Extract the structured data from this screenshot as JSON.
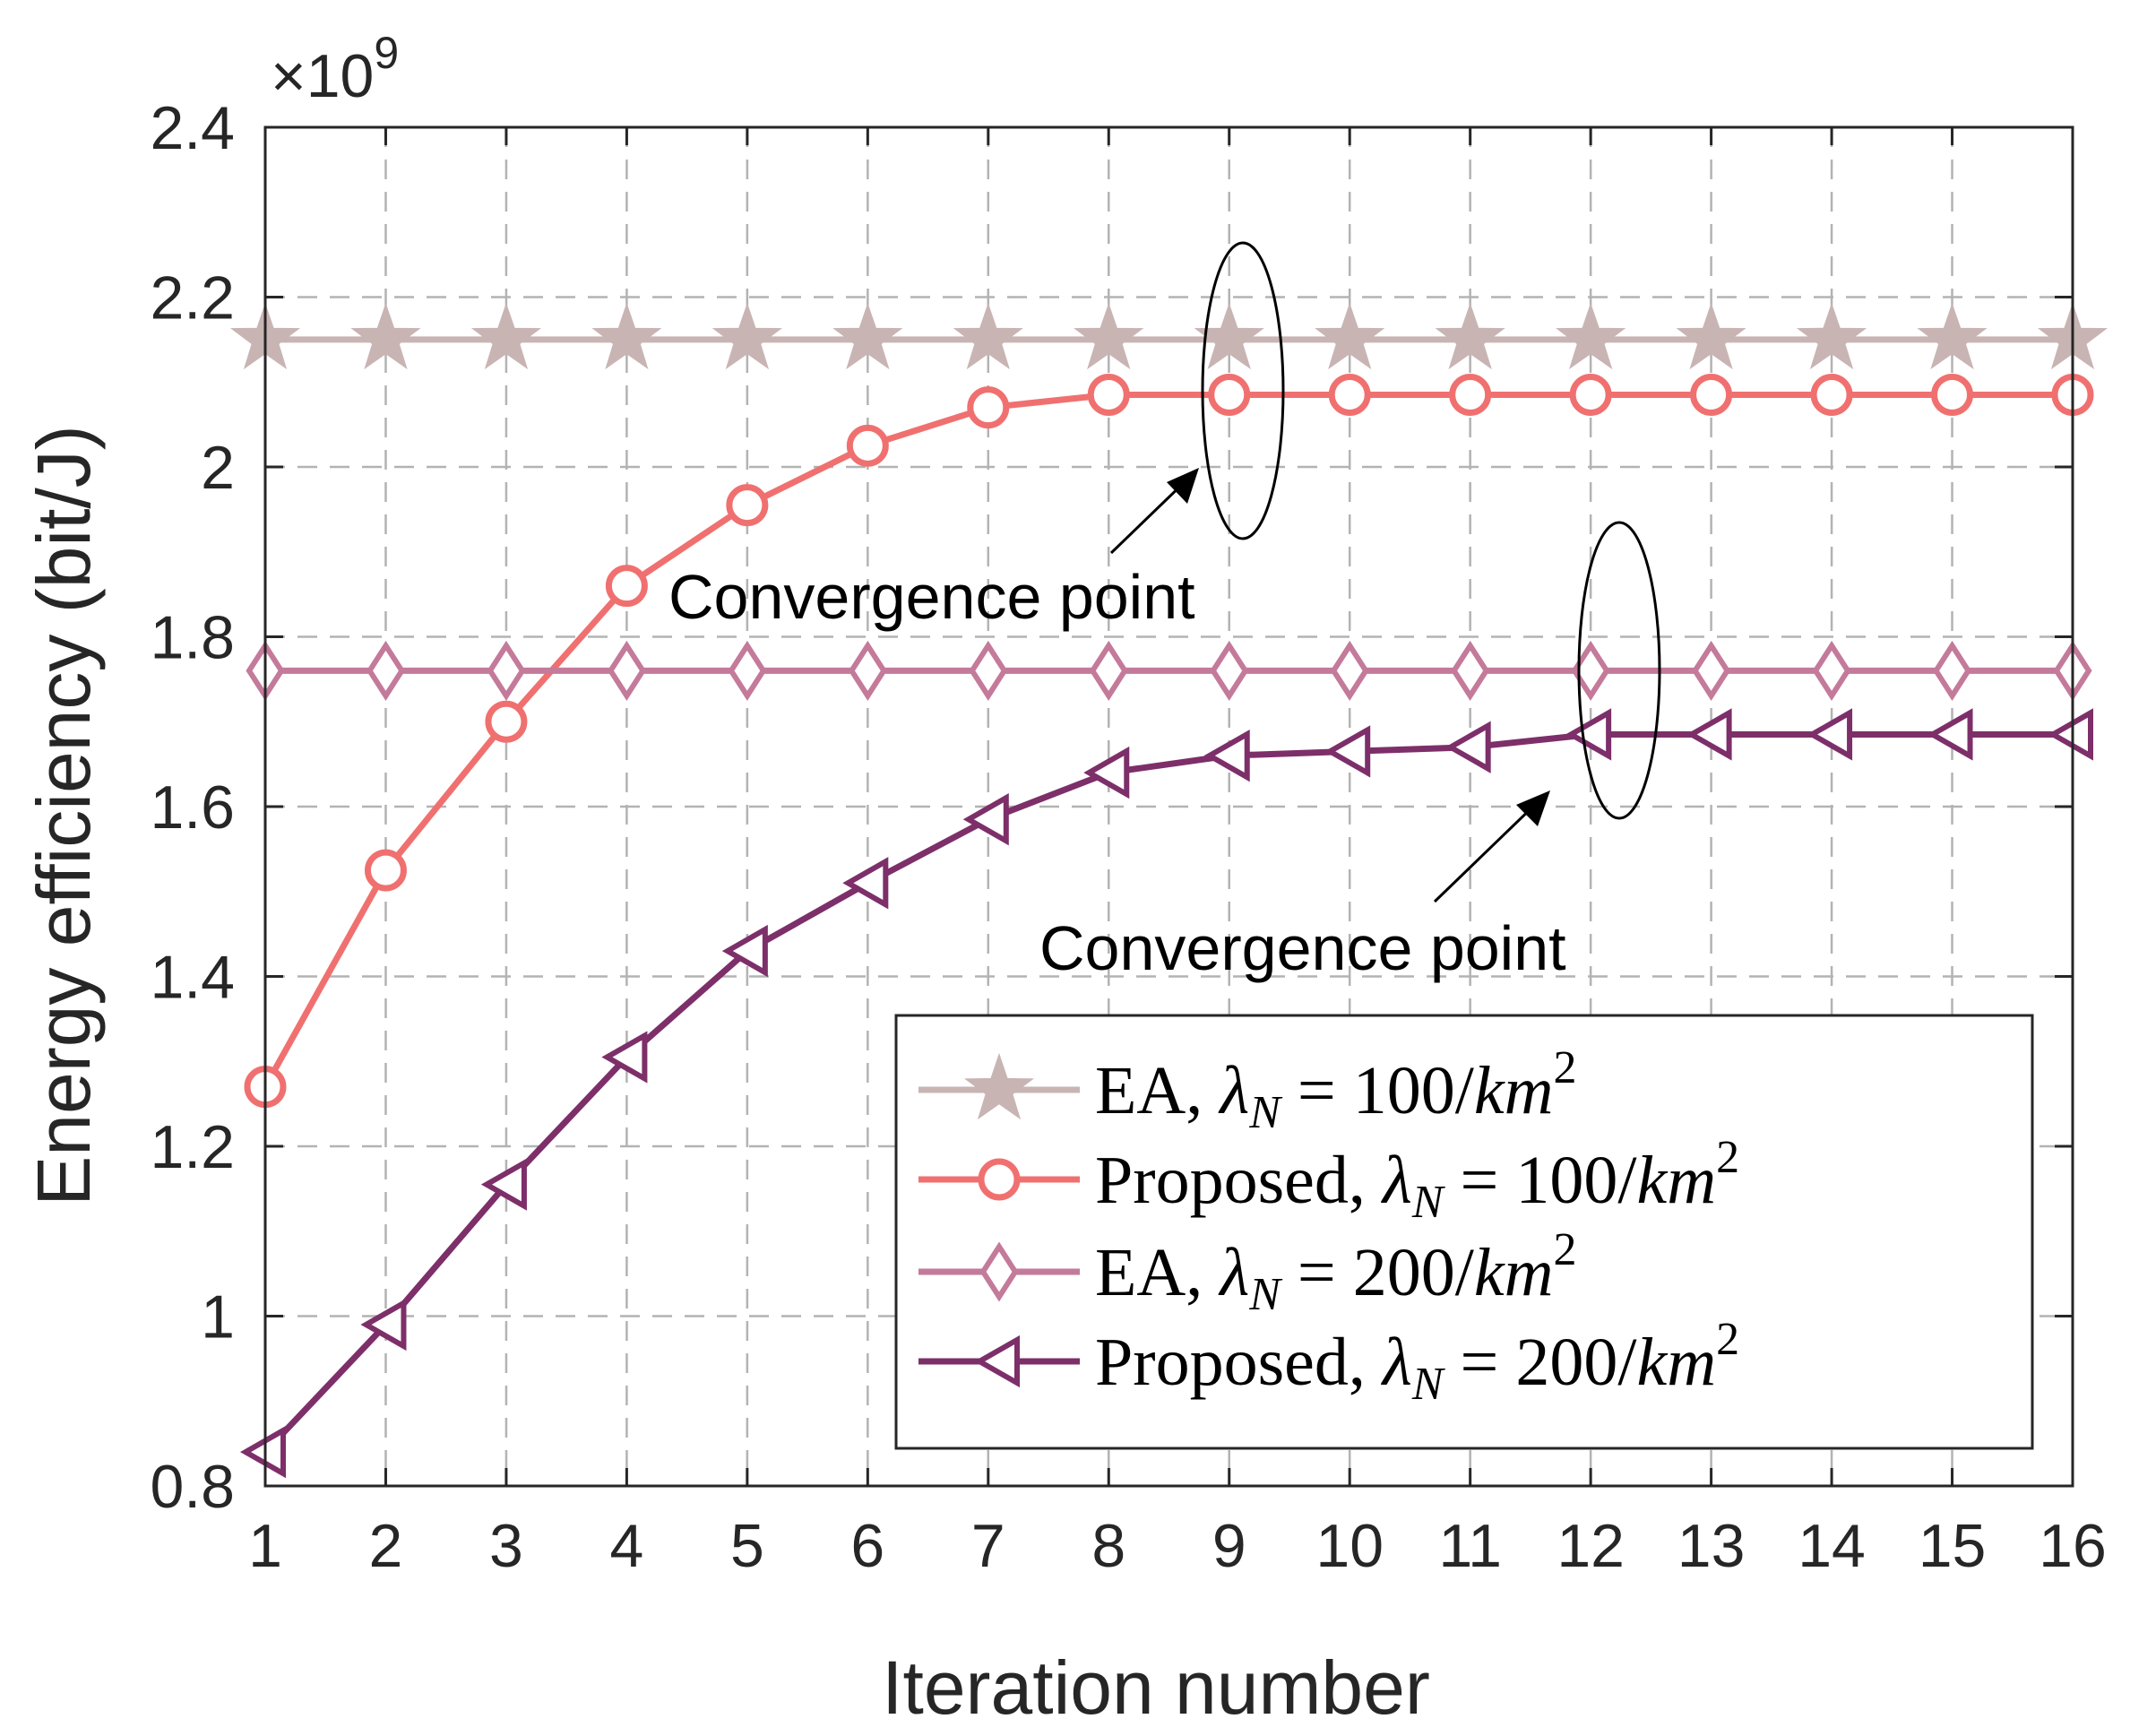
{
  "chart_data": {
    "type": "line",
    "x": [
      1,
      2,
      3,
      4,
      5,
      6,
      7,
      8,
      9,
      10,
      11,
      12,
      13,
      14,
      15,
      16
    ],
    "xlabel": "Iteration number",
    "ylabel": "Energy efficiency (bit/J)",
    "xlim": [
      1,
      16
    ],
    "ylim": [
      0.8,
      2.4
    ],
    "x_ticks": [
      "1",
      "2",
      "3",
      "4",
      "5",
      "6",
      "7",
      "8",
      "9",
      "10",
      "11",
      "12",
      "13",
      "14",
      "15",
      "16"
    ],
    "y_ticks": [
      "0.8",
      "1",
      "1.2",
      "1.4",
      "1.6",
      "1.8",
      "2",
      "2.2",
      "2.4"
    ],
    "y_exponent_base": "×10",
    "y_exponent_power": "9",
    "grid": true,
    "legend_position": "bottom-right",
    "series": [
      {
        "name": "EA, λN = 100/km2",
        "legend_prefix": "EA, ",
        "legend_sub": "N",
        "legend_mid": " = 100/",
        "legend_unit": "km",
        "legend_sup": "2",
        "marker": "star",
        "color": "#c9b4b4",
        "values": [
          2.15,
          2.15,
          2.15,
          2.15,
          2.15,
          2.15,
          2.15,
          2.15,
          2.15,
          2.15,
          2.15,
          2.15,
          2.15,
          2.15,
          2.15,
          2.15
        ]
      },
      {
        "name": "Proposed, λN = 100/km2",
        "legend_prefix": "Proposed, ",
        "legend_sub": "N",
        "legend_mid": " = 100/",
        "legend_unit": "km",
        "legend_sup": "2",
        "marker": "circle",
        "color": "#f07070",
        "values": [
          1.27,
          1.525,
          1.7,
          1.86,
          1.955,
          2.025,
          2.07,
          2.085,
          2.085,
          2.085,
          2.085,
          2.085,
          2.085,
          2.085,
          2.085,
          2.085
        ]
      },
      {
        "name": "EA, λN = 200/km2",
        "legend_prefix": "EA, ",
        "legend_sub": "N",
        "legend_mid": " = 200/",
        "legend_unit": "km",
        "legend_sup": "2",
        "marker": "diamond",
        "color": "#c47a9a",
        "values": [
          1.76,
          1.76,
          1.76,
          1.76,
          1.76,
          1.76,
          1.76,
          1.76,
          1.76,
          1.76,
          1.76,
          1.76,
          1.76,
          1.76,
          1.76,
          1.76
        ]
      },
      {
        "name": "Proposed, λN = 200/km2",
        "legend_prefix": "Proposed, ",
        "legend_sub": "N",
        "legend_mid": " = 200/",
        "legend_unit": "km",
        "legend_sup": "2",
        "marker": "triangle-left",
        "color": "#7d2f69",
        "values": [
          0.84,
          0.99,
          1.155,
          1.305,
          1.43,
          1.51,
          1.585,
          1.64,
          1.66,
          1.665,
          1.67,
          1.685,
          1.685,
          1.685,
          1.685,
          1.685
        ]
      }
    ],
    "annotations": [
      {
        "text": "Convergence point",
        "target_x": 9,
        "target_y": 2.085
      },
      {
        "text": "Convergence point",
        "target_x": 12,
        "target_y": 1.685
      }
    ]
  }
}
